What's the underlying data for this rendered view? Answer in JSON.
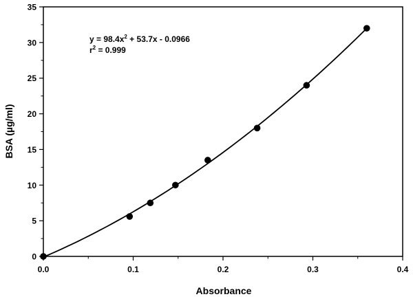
{
  "chart_data": {
    "type": "scatter",
    "title": "",
    "xlabel": "Absorbance",
    "ylabel": "BSA (µg/ml)",
    "xlim": [
      0.0,
      0.4
    ],
    "ylim": [
      0,
      35
    ],
    "x_ticks": [
      0.0,
      0.1,
      0.2,
      0.3,
      0.4
    ],
    "x_tick_labels": [
      "0.0",
      "0.1",
      "0.2",
      "0.3",
      "0.4"
    ],
    "y_ticks": [
      0,
      5,
      10,
      15,
      20,
      25,
      30,
      35
    ],
    "y_tick_labels": [
      "0",
      "5",
      "10",
      "15",
      "20",
      "25",
      "30",
      "35"
    ],
    "grid": false,
    "series": [
      {
        "type": "scatter",
        "x": [
          0.0,
          0.096,
          0.119,
          0.147,
          0.183,
          0.238,
          0.293,
          0.36
        ],
        "y": [
          0.0,
          5.6,
          7.5,
          10.0,
          13.5,
          18.0,
          24.0,
          32.0
        ],
        "color": "#000000"
      },
      {
        "type": "curve",
        "fit": {
          "a": 98.4,
          "b": 53.7,
          "c": -0.0966
        },
        "x_range": [
          0.0,
          0.36
        ],
        "color": "#000000"
      }
    ],
    "annotation": {
      "equation_prefix": "y = 98.4x",
      "equation_exp": "2",
      "equation_suffix": " + 53.7x - 0.0966",
      "r2_prefix": "r",
      "r2_exp": "2",
      "r2_suffix": " = 0.999"
    }
  }
}
